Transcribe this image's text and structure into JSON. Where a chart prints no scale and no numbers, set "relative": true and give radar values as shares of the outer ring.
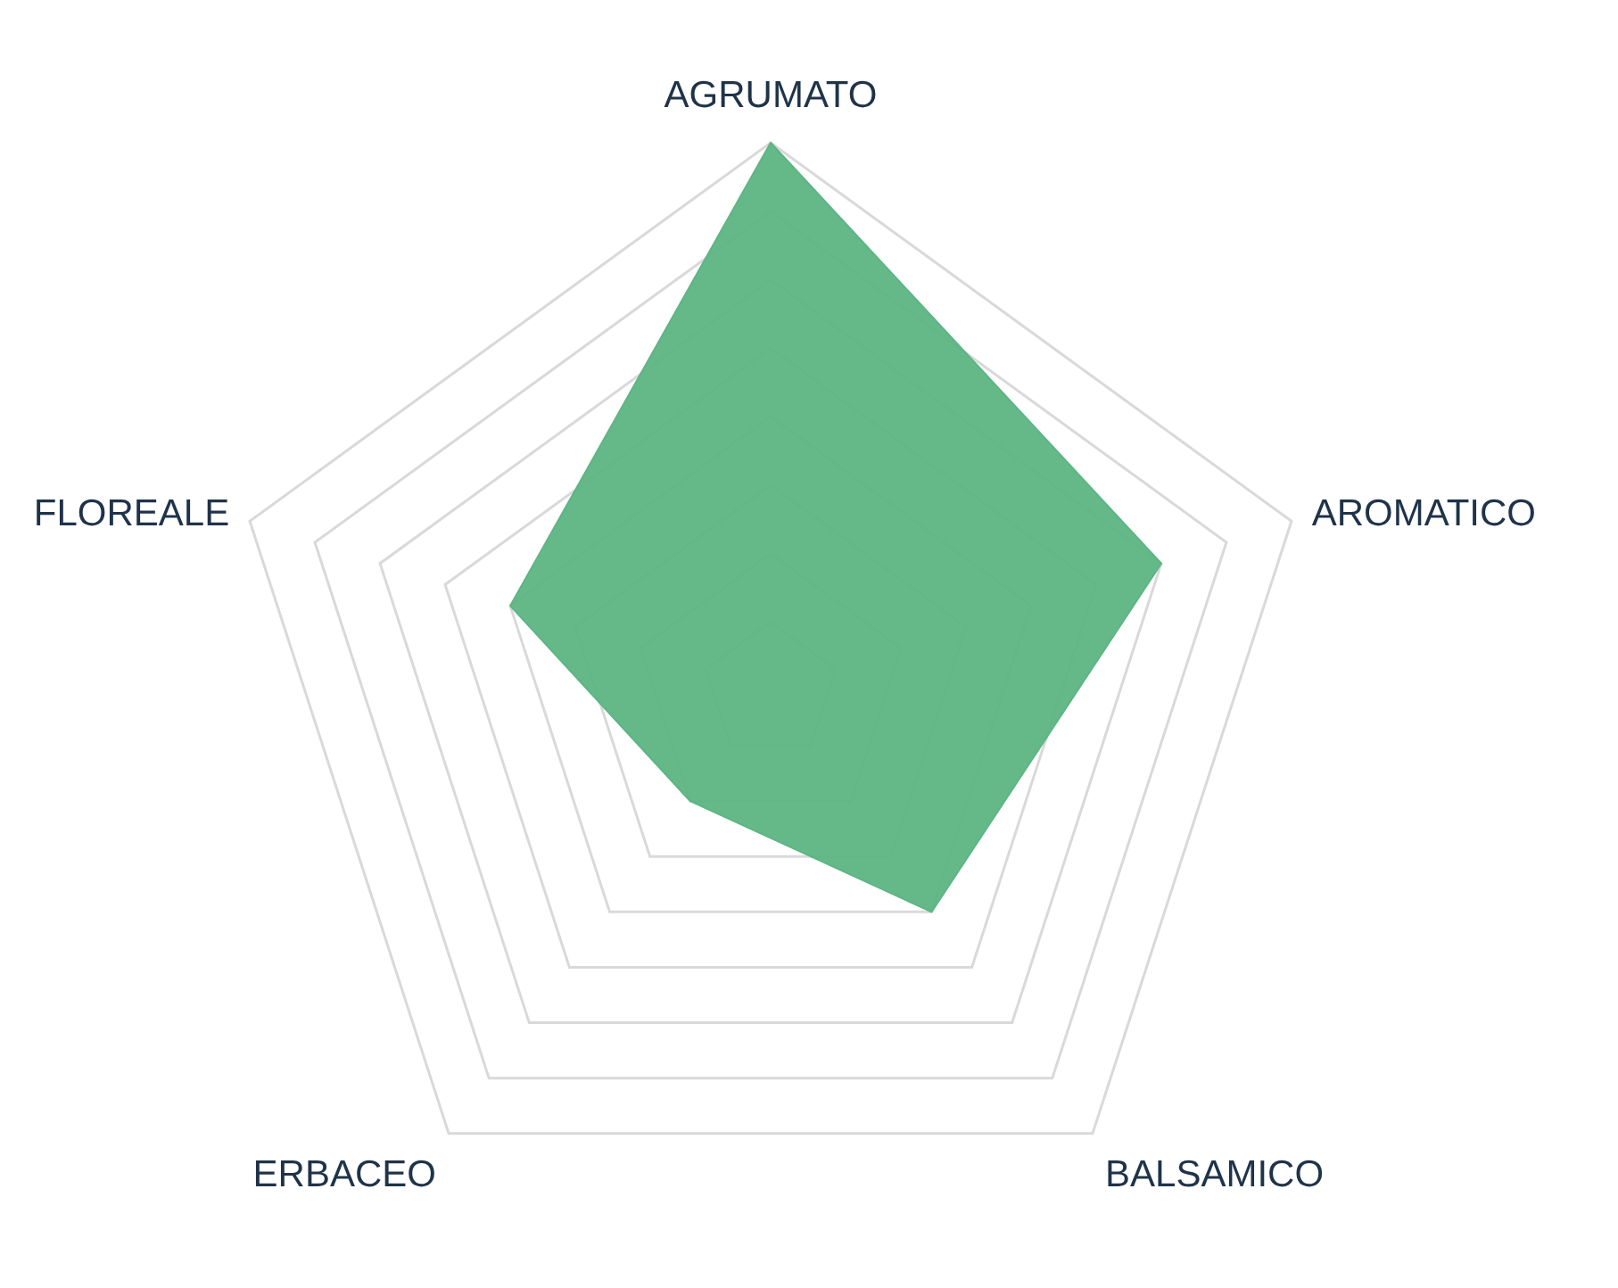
{
  "chart_data": {
    "type": "radar",
    "relative": true,
    "grid": true,
    "categories": [
      "AGRUMATO",
      "AROMATICO",
      "BALSAMICO",
      "ERBACEO",
      "FLOREALE"
    ],
    "series": [
      {
        "color": "#5db583",
        "values": [
          1,
          0.75,
          0.5,
          0.25,
          0.5
        ]
      }
    ]
  }
}
